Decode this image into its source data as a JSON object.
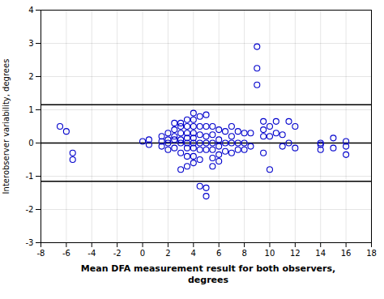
{
  "chart_data": {
    "type": "scatter",
    "x_label": "Mean DFA measurement result for both observers,\ndegrees",
    "y_label": "Interobserver variability, degrees",
    "x": [
      -6.5,
      -6.0,
      -5.5,
      -5.5,
      0.0,
      0.5,
      0.5,
      1.5,
      1.5,
      1.5,
      2.0,
      2.0,
      2.0,
      2.0,
      2.5,
      2.5,
      2.5,
      2.5,
      2.5,
      3.0,
      3.0,
      3.0,
      3.0,
      3.0,
      3.0,
      3.0,
      3.5,
      3.5,
      3.5,
      3.5,
      3.5,
      3.5,
      3.5,
      3.5,
      4.0,
      4.0,
      4.0,
      4.0,
      4.0,
      4.0,
      4.0,
      4.0,
      4.0,
      4.5,
      4.5,
      4.5,
      4.5,
      4.5,
      4.5,
      4.5,
      5.0,
      5.0,
      5.0,
      5.0,
      5.0,
      5.0,
      5.0,
      5.5,
      5.5,
      5.5,
      5.5,
      5.5,
      5.5,
      6.0,
      6.0,
      6.0,
      6.0,
      6.0,
      6.5,
      6.5,
      6.5,
      7.0,
      7.0,
      7.0,
      7.0,
      7.5,
      7.5,
      7.5,
      8.0,
      8.0,
      8.0,
      8.5,
      8.5,
      9.0,
      9.0,
      9.0,
      9.5,
      9.5,
      9.5,
      9.5,
      10.0,
      10.0,
      10.0,
      10.5,
      10.5,
      11.0,
      11.0,
      11.5,
      11.5,
      12.0,
      12.0,
      14.0,
      14.0,
      14.0,
      15.0,
      15.0,
      16.0,
      16.0,
      16.0
    ],
    "values": [
      0.5,
      0.35,
      -0.3,
      -0.5,
      0.05,
      -0.05,
      0.1,
      0.05,
      -0.1,
      0.2,
      0.0,
      0.1,
      -0.2,
      0.3,
      0.2,
      0.1,
      0.4,
      -0.15,
      0.6,
      0.5,
      0.6,
      0.3,
      0.1,
      0.0,
      -0.3,
      -0.8,
      0.7,
      0.5,
      0.3,
      0.15,
      0.0,
      -0.15,
      -0.4,
      -0.7,
      0.9,
      0.7,
      0.5,
      0.3,
      0.15,
      0.0,
      -0.15,
      -0.4,
      -0.6,
      0.8,
      0.5,
      0.25,
      0.0,
      -0.2,
      -0.5,
      -1.3,
      0.85,
      0.5,
      0.2,
      0.0,
      -0.2,
      -1.35,
      -1.6,
      0.5,
      0.25,
      0.0,
      -0.2,
      -0.45,
      -0.7,
      0.4,
      0.1,
      -0.1,
      -0.35,
      -0.55,
      0.35,
      0.0,
      -0.25,
      0.5,
      0.2,
      0.0,
      -0.3,
      0.35,
      0.0,
      -0.2,
      0.3,
      0.0,
      -0.2,
      0.3,
      -0.1,
      2.9,
      2.25,
      1.75,
      0.65,
      0.4,
      0.2,
      -0.3,
      0.5,
      0.2,
      -0.8,
      0.65,
      0.3,
      0.25,
      -0.1,
      0.65,
      0.0,
      0.5,
      -0.15,
      0.0,
      -0.05,
      -0.2,
      0.15,
      -0.15,
      0.05,
      -0.1,
      -0.35
    ],
    "hlines": [
      0.0,
      1.15,
      -1.15
    ],
    "color": "#0000CC",
    "marker": "circle",
    "xlim": [
      -8,
      18
    ],
    "ylim": [
      -3,
      4
    ],
    "xticks": [
      -8,
      -6,
      -4,
      -2,
      0,
      2,
      4,
      6,
      8,
      10,
      12,
      14,
      16,
      18
    ],
    "yticks": [
      -3,
      -2,
      -1,
      0,
      1,
      2,
      3,
      4
    ],
    "grid": true
  }
}
